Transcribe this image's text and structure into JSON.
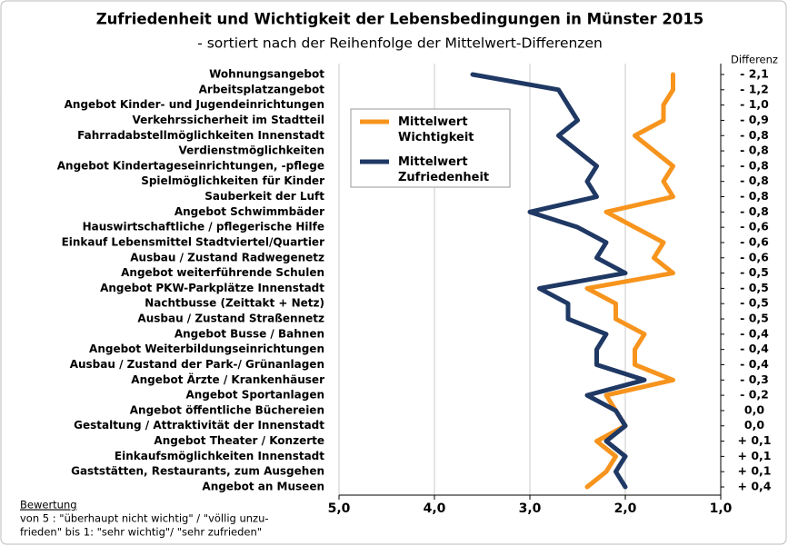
{
  "chart_data": {
    "type": "line",
    "orientation": "horizontal",
    "title": "Zufriedenheit und Wichtigkeit der Lebensbedingungen in Münster 2015",
    "subtitle": "- sortiert nach der  Reihenfolge der Mittelwert-Differenzen",
    "categories": [
      "Wohnungsangebot",
      "Arbeitsplatzangebot",
      "Angebot Kinder- und Jugendeinrichtungen",
      "Verkehrssicherheit im Stadtteil",
      "Fahrradabstellmöglichkeiten Innenstadt",
      "Verdienstmöglichkeiten",
      "Angebot Kindertageseinrichtungen, -pflege",
      "Spielmöglichkeiten für Kinder",
      "Sauberkeit der Luft",
      "Angebot Schwimmbäder",
      "Hauswirtschaftliche / pflegerische Hilfe",
      "Einkauf Lebensmittel Stadtviertel/Quartier",
      "Ausbau / Zustand Radwegenetz",
      "Angebot weiterführende Schulen",
      "Angebot PKW-Parkplätze Innenstadt",
      "Nachtbusse (Zeittakt + Netz)",
      "Ausbau / Zustand Straßennetz",
      "Angebot Busse / Bahnen",
      "Angebot Weiterbildungseinrichtungen",
      "Ausbau / Zustand der Park-/ Grünanlagen",
      "Angebot Ärzte / Krankenhäuser",
      "Angebot Sportanlagen",
      "Angebot öffentliche Büchereien",
      "Gestaltung / Attraktivität der Innenstadt",
      "Angebot Theater / Konzerte",
      "Einkaufsmöglichkeiten Innenstadt",
      "Gaststätten, Restaurants, zum Ausgehen",
      "Angebot an Museen"
    ],
    "series": [
      {
        "name": "Mittelwert Wichtigkeit",
        "color": "#f7941d",
        "values": [
          1.5,
          1.5,
          1.6,
          1.6,
          1.9,
          1.7,
          1.5,
          1.6,
          1.5,
          2.2,
          1.9,
          1.6,
          1.7,
          1.5,
          2.4,
          2.1,
          2.1,
          1.8,
          1.9,
          1.9,
          1.5,
          2.2,
          2.1,
          2.0,
          2.3,
          2.1,
          2.2,
          2.4
        ]
      },
      {
        "name": "Mittelwert Zufriedenheit",
        "color": "#1f3864",
        "values": [
          3.6,
          2.7,
          2.6,
          2.5,
          2.7,
          2.5,
          2.3,
          2.4,
          2.3,
          3.0,
          2.5,
          2.2,
          2.3,
          2.0,
          2.9,
          2.6,
          2.6,
          2.2,
          2.3,
          2.3,
          1.8,
          2.4,
          2.1,
          2.0,
          2.2,
          2.0,
          2.1,
          2.0
        ]
      }
    ],
    "differences": {
      "title": "Differenz",
      "values": [
        -2.1,
        -1.2,
        -1.0,
        -0.9,
        -0.8,
        -0.8,
        -0.8,
        -0.8,
        -0.8,
        -0.8,
        -0.6,
        -0.6,
        -0.6,
        -0.5,
        -0.5,
        -0.5,
        -0.5,
        -0.4,
        -0.4,
        -0.4,
        -0.3,
        -0.2,
        0.0,
        0.0,
        0.1,
        0.1,
        0.1,
        0.4
      ],
      "value_labels": [
        "- 2,1",
        "- 1,2",
        "- 1,0",
        "- 0,9",
        "- 0,8",
        "- 0,8",
        "- 0,8",
        "- 0,8",
        "- 0,8",
        "- 0,8",
        "- 0,6",
        "- 0,6",
        "- 0,6",
        "- 0,5",
        "- 0,5",
        "- 0,5",
        "- 0,5",
        "- 0,4",
        "- 0,4",
        "- 0,4",
        "- 0,3",
        "- 0,2",
        "0,0",
        "0,0",
        "+ 0,1",
        "+ 0,1",
        "+ 0,1",
        "+ 0,4"
      ]
    },
    "xlim": [
      5,
      1
    ],
    "xticks": [
      {
        "value": 5,
        "label": "5,0"
      },
      {
        "value": 4,
        "label": "4,0"
      },
      {
        "value": 3,
        "label": "3,0"
      },
      {
        "value": 2,
        "label": "2,0"
      },
      {
        "value": 1,
        "label": "1,0"
      }
    ],
    "grid": true,
    "legend": "upper-left",
    "note": {
      "heading": "Bewertung",
      "lines": [
        "von 5 : \"überhaupt nicht wichtig\" / \"völlig unzu-",
        "frieden\"  bis 1: \"sehr wichtig\"/ \"sehr zufrieden\""
      ]
    }
  }
}
